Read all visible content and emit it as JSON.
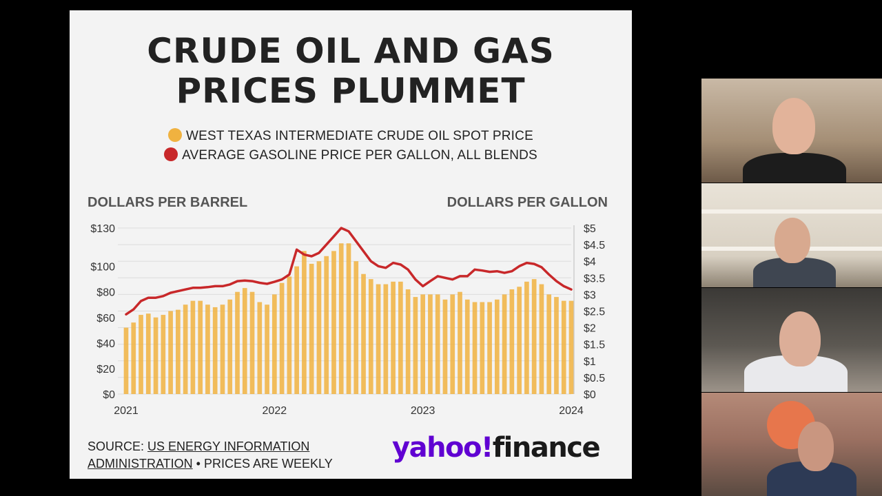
{
  "title_lines": [
    "CRUDE OIL AND GAS",
    "PRICES PLUMMET"
  ],
  "legend": {
    "oil": "WEST TEXAS INTERMEDIATE CRUDE OIL SPOT PRICE",
    "gas": "AVERAGE GASOLINE PRICE PER GALLON, ALL BLENDS"
  },
  "y_left_label": "DOLLARS PER BARREL",
  "y_right_label": "DOLLARS PER GALLON",
  "source": {
    "prefix": "SOURCE: ",
    "link_1": "US ENERGY INFORMATION",
    "link_2": "ADMINISTRATION",
    "suffix": " • PRICES ARE WEEKLY"
  },
  "logo": {
    "brand": "yahoo!",
    "product": "finance"
  },
  "colors": {
    "oil": "#f0b240",
    "gas": "#c8282a",
    "slide_bg": "#f3f3f3"
  },
  "panels": [
    {
      "name": "participant-1"
    },
    {
      "name": "participant-2"
    },
    {
      "name": "participant-3"
    },
    {
      "name": "participant-4"
    }
  ],
  "chart_data": {
    "type": "bar+line",
    "x": [
      "2021",
      "2022",
      "2023",
      "2024"
    ],
    "xlim": [
      2021.0,
      2024.0
    ],
    "y_left": {
      "label": "DOLLARS PER BARREL",
      "ticks": [
        0,
        20,
        40,
        60,
        80,
        100,
        130
      ],
      "tick_labels": [
        "$0",
        "$20",
        "$40",
        "$60",
        "$80",
        "$100",
        "$130"
      ],
      "lim": [
        0,
        130
      ]
    },
    "y_right": {
      "label": "DOLLARS PER GALLON",
      "ticks": [
        0,
        0.5,
        1,
        1.5,
        2,
        2.5,
        3,
        3.5,
        4,
        4.5,
        5
      ],
      "tick_labels": [
        "$0",
        "$0.5",
        "$1",
        "$1.5",
        "$2",
        "$2.5",
        "$3",
        "$3.5",
        "$4",
        "$4.5",
        "$5"
      ],
      "lim": [
        0,
        5
      ]
    },
    "series": [
      {
        "name": "WEST TEXAS INTERMEDIATE CRUDE OIL SPOT PRICE",
        "type": "bar",
        "axis": "left",
        "points": [
          [
            2021.0,
            52
          ],
          [
            2021.05,
            56
          ],
          [
            2021.1,
            62
          ],
          [
            2021.15,
            63
          ],
          [
            2021.2,
            60
          ],
          [
            2021.25,
            62
          ],
          [
            2021.3,
            65
          ],
          [
            2021.35,
            66
          ],
          [
            2021.4,
            70
          ],
          [
            2021.45,
            73
          ],
          [
            2021.5,
            73
          ],
          [
            2021.55,
            70
          ],
          [
            2021.6,
            68
          ],
          [
            2021.65,
            70
          ],
          [
            2021.7,
            74
          ],
          [
            2021.75,
            80
          ],
          [
            2021.8,
            83
          ],
          [
            2021.85,
            80
          ],
          [
            2021.9,
            72
          ],
          [
            2021.95,
            70
          ],
          [
            2022.0,
            78
          ],
          [
            2022.05,
            87
          ],
          [
            2022.1,
            92
          ],
          [
            2022.15,
            100
          ],
          [
            2022.2,
            112
          ],
          [
            2022.25,
            102
          ],
          [
            2022.3,
            104
          ],
          [
            2022.35,
            108
          ],
          [
            2022.4,
            112
          ],
          [
            2022.45,
            118
          ],
          [
            2022.5,
            118
          ],
          [
            2022.55,
            104
          ],
          [
            2022.6,
            94
          ],
          [
            2022.65,
            90
          ],
          [
            2022.7,
            86
          ],
          [
            2022.75,
            86
          ],
          [
            2022.8,
            88
          ],
          [
            2022.85,
            88
          ],
          [
            2022.9,
            82
          ],
          [
            2022.95,
            76
          ],
          [
            2023.0,
            78
          ],
          [
            2023.05,
            78
          ],
          [
            2023.1,
            78
          ],
          [
            2023.15,
            74
          ],
          [
            2023.2,
            78
          ],
          [
            2023.25,
            80
          ],
          [
            2023.3,
            74
          ],
          [
            2023.35,
            72
          ],
          [
            2023.4,
            72
          ],
          [
            2023.45,
            72
          ],
          [
            2023.5,
            74
          ],
          [
            2023.55,
            78
          ],
          [
            2023.6,
            82
          ],
          [
            2023.65,
            84
          ],
          [
            2023.7,
            88
          ],
          [
            2023.75,
            90
          ],
          [
            2023.8,
            86
          ],
          [
            2023.85,
            78
          ],
          [
            2023.9,
            76
          ],
          [
            2023.95,
            73
          ],
          [
            2024.0,
            73
          ]
        ]
      },
      {
        "name": "AVERAGE GASOLINE PRICE PER GALLON, ALL BLENDS",
        "type": "line",
        "axis": "right",
        "points": [
          [
            2021.0,
            2.4
          ],
          [
            2021.05,
            2.55
          ],
          [
            2021.1,
            2.8
          ],
          [
            2021.15,
            2.9
          ],
          [
            2021.2,
            2.9
          ],
          [
            2021.25,
            2.95
          ],
          [
            2021.3,
            3.05
          ],
          [
            2021.35,
            3.1
          ],
          [
            2021.4,
            3.15
          ],
          [
            2021.45,
            3.2
          ],
          [
            2021.5,
            3.2
          ],
          [
            2021.55,
            3.22
          ],
          [
            2021.6,
            3.25
          ],
          [
            2021.65,
            3.25
          ],
          [
            2021.7,
            3.3
          ],
          [
            2021.75,
            3.4
          ],
          [
            2021.8,
            3.42
          ],
          [
            2021.85,
            3.4
          ],
          [
            2021.9,
            3.35
          ],
          [
            2021.95,
            3.32
          ],
          [
            2022.0,
            3.38
          ],
          [
            2022.05,
            3.45
          ],
          [
            2022.1,
            3.6
          ],
          [
            2022.15,
            4.35
          ],
          [
            2022.2,
            4.2
          ],
          [
            2022.25,
            4.15
          ],
          [
            2022.3,
            4.25
          ],
          [
            2022.35,
            4.5
          ],
          [
            2022.4,
            4.75
          ],
          [
            2022.45,
            5.0
          ],
          [
            2022.5,
            4.9
          ],
          [
            2022.55,
            4.6
          ],
          [
            2022.6,
            4.3
          ],
          [
            2022.65,
            4.0
          ],
          [
            2022.7,
            3.85
          ],
          [
            2022.75,
            3.8
          ],
          [
            2022.8,
            3.95
          ],
          [
            2022.85,
            3.9
          ],
          [
            2022.9,
            3.75
          ],
          [
            2022.95,
            3.45
          ],
          [
            2023.0,
            3.25
          ],
          [
            2023.05,
            3.4
          ],
          [
            2023.1,
            3.55
          ],
          [
            2023.15,
            3.5
          ],
          [
            2023.2,
            3.45
          ],
          [
            2023.25,
            3.55
          ],
          [
            2023.3,
            3.55
          ],
          [
            2023.35,
            3.75
          ],
          [
            2023.4,
            3.72
          ],
          [
            2023.45,
            3.68
          ],
          [
            2023.5,
            3.7
          ],
          [
            2023.55,
            3.65
          ],
          [
            2023.6,
            3.7
          ],
          [
            2023.65,
            3.85
          ],
          [
            2023.7,
            3.95
          ],
          [
            2023.75,
            3.92
          ],
          [
            2023.8,
            3.82
          ],
          [
            2023.85,
            3.6
          ],
          [
            2023.9,
            3.4
          ],
          [
            2023.95,
            3.25
          ],
          [
            2024.0,
            3.15
          ]
        ]
      }
    ]
  }
}
